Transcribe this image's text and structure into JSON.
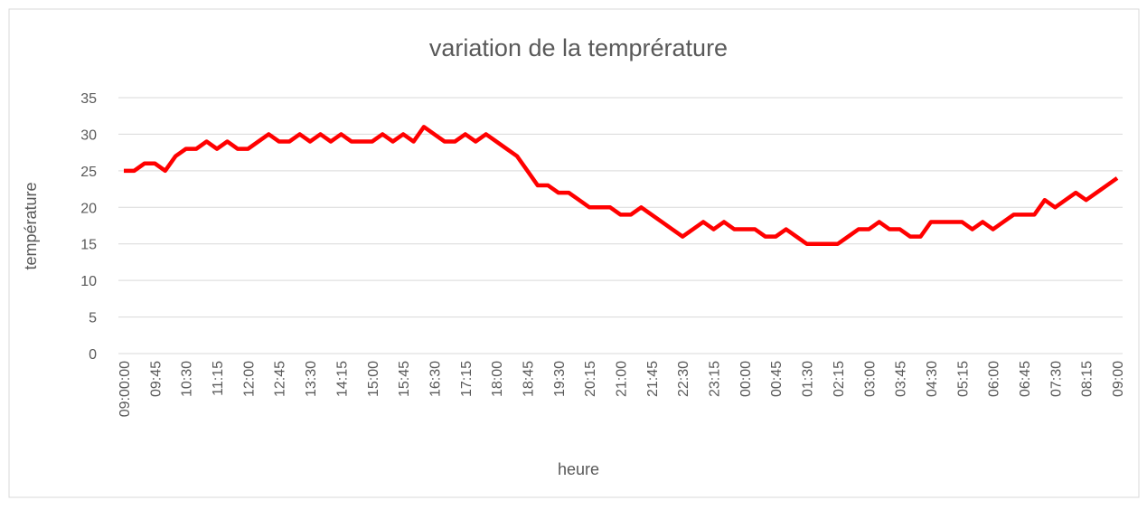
{
  "chart_data": {
    "type": "line",
    "title": "variation de la temprérature",
    "x_label": "heure",
    "y_label": "température",
    "categories": [
      "09:00:00",
      null,
      null,
      "09:45",
      null,
      null,
      "10:30",
      null,
      null,
      "11:15",
      null,
      null,
      "12:00",
      null,
      null,
      "12:45",
      null,
      null,
      "13:30",
      null,
      null,
      "14:15",
      null,
      null,
      "15:00",
      null,
      null,
      "15:45",
      null,
      null,
      "16:30",
      null,
      null,
      "17:15",
      null,
      null,
      "18:00",
      null,
      null,
      "18:45",
      null,
      null,
      "19:30",
      null,
      null,
      "20:15",
      null,
      null,
      "21:00",
      null,
      null,
      "21:45",
      null,
      null,
      "22:30",
      null,
      null,
      "23:15",
      null,
      null,
      "00:00",
      null,
      null,
      "00:45",
      null,
      null,
      "01:30",
      null,
      null,
      "02:15",
      null,
      null,
      "03:00",
      null,
      null,
      "03:45",
      null,
      null,
      "04:30",
      null,
      null,
      "05:15",
      null,
      null,
      "06:00",
      null,
      null,
      "06:45",
      null,
      null,
      "07:30",
      null,
      null,
      "08:15",
      null,
      null,
      "09:00"
    ],
    "series": [
      {
        "name": "température",
        "color": "#ff0000",
        "values": [
          25,
          25,
          26,
          26,
          25,
          27,
          28,
          28,
          29,
          28,
          29,
          28,
          28,
          29,
          30,
          29,
          29,
          30,
          29,
          30,
          29,
          30,
          29,
          29,
          29,
          30,
          29,
          30,
          29,
          31,
          30,
          29,
          29,
          30,
          29,
          30,
          29,
          28,
          27,
          25,
          23,
          23,
          22,
          22,
          21,
          20,
          20,
          20,
          19,
          19,
          20,
          19,
          18,
          17,
          16,
          17,
          18,
          17,
          18,
          17,
          17,
          17,
          16,
          16,
          17,
          16,
          15,
          15,
          15,
          15,
          16,
          17,
          17,
          18,
          17,
          17,
          16,
          16,
          18,
          18,
          18,
          18,
          17,
          18,
          17,
          18,
          19,
          19,
          19,
          21,
          20,
          21,
          22,
          21,
          22,
          23,
          24
        ]
      }
    ],
    "ylim": [
      0,
      35
    ],
    "yticks": [
      0,
      5,
      10,
      15,
      20,
      25,
      30,
      35
    ],
    "grid": true
  }
}
